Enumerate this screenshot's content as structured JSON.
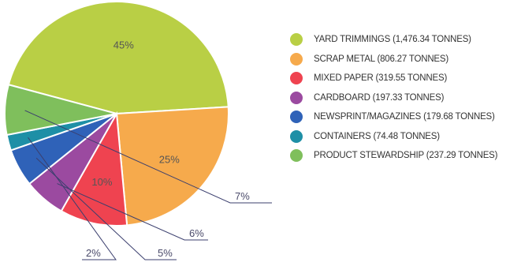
{
  "chart_data": {
    "type": "pie",
    "legend_position": "right",
    "slices": [
      {
        "label": "YARD TRIMMINGS (1,476.34 TONNES)",
        "value": 1476.34,
        "percent_label": "45%",
        "color": "#b9cf45"
      },
      {
        "label": "SCRAP METAL (806.27 TONNES)",
        "value": 806.27,
        "percent_label": "25%",
        "color": "#f6aa4c"
      },
      {
        "label": "MIXED PAPER (319.55 TONNES)",
        "value": 319.55,
        "percent_label": "10%",
        "color": "#ef4350"
      },
      {
        "label": "CARDBOARD (197.33 TONNES)",
        "value": 197.33,
        "percent_label": "6%",
        "color": "#9b4aa0"
      },
      {
        "label": "NEWSPRINT/MAGAZINES (179.68 TONNES)",
        "value": 179.68,
        "percent_label": "5%",
        "color": "#2f62b8"
      },
      {
        "label": "CONTAINERS (74.48 TONNES)",
        "value": 74.48,
        "percent_label": "2%",
        "color": "#1e8fa6"
      },
      {
        "label": "PRODUCT STEWARDSHIP (237.29 TONNES)",
        "value": 237.29,
        "percent_label": "7%",
        "color": "#7fbf5c"
      }
    ]
  }
}
